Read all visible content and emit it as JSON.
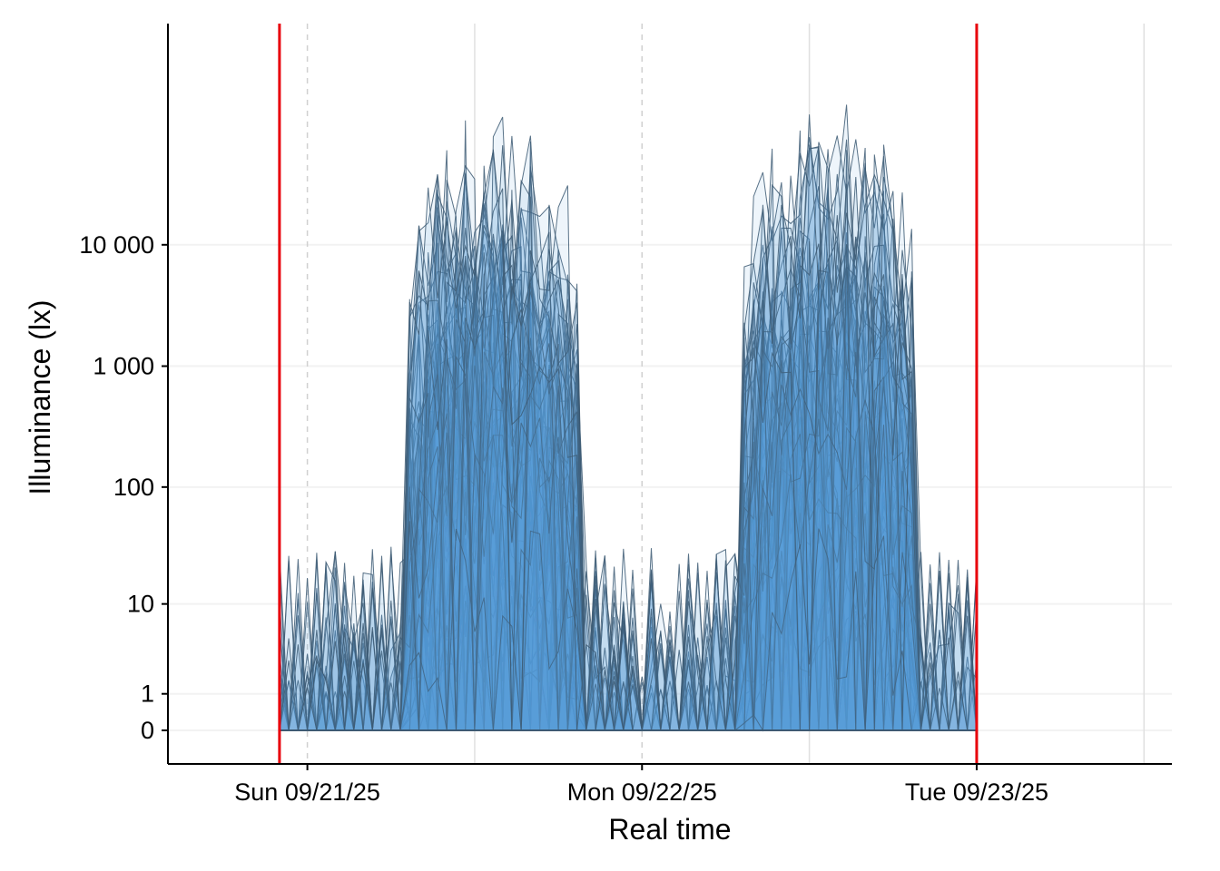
{
  "chart_data": {
    "type": "area",
    "title": "",
    "xlabel": "Real time",
    "ylabel": "Illuminance (lx)",
    "y_scale": "symlog",
    "y_ticks": [
      0,
      1,
      10,
      100,
      1000,
      10000
    ],
    "y_tick_labels": [
      "0",
      "1",
      "10",
      "100",
      "1 000",
      "10 000"
    ],
    "x_range": [
      "2025-09-20 14:00",
      "2025-09-23 14:00"
    ],
    "x_ticks": [
      "2025-09-21 00:00",
      "2025-09-22 00:00",
      "2025-09-23 00:00"
    ],
    "x_tick_labels": [
      "Sun 09/21/25",
      "Mon 09/22/25",
      "Tue 09/23/25"
    ],
    "x_minor_gridlines": [
      "2025-09-21 12:00",
      "2025-09-22 12:00",
      "2025-09-23 12:00"
    ],
    "reference_lines": [
      "2025-09-20 22:00",
      "2025-09-23 00:00"
    ],
    "grid": true,
    "legend": "none",
    "n_series": 60,
    "series_note": "many overlapping participant illuminance traces between the two red reference lines, high during daytime and near zero at night",
    "colors": {
      "area_fill": "#5B9BD5",
      "series_line": "#3D5A73",
      "reference_line": "#E8000B",
      "grid": "#E0E0E0",
      "axis": "#000000"
    }
  }
}
